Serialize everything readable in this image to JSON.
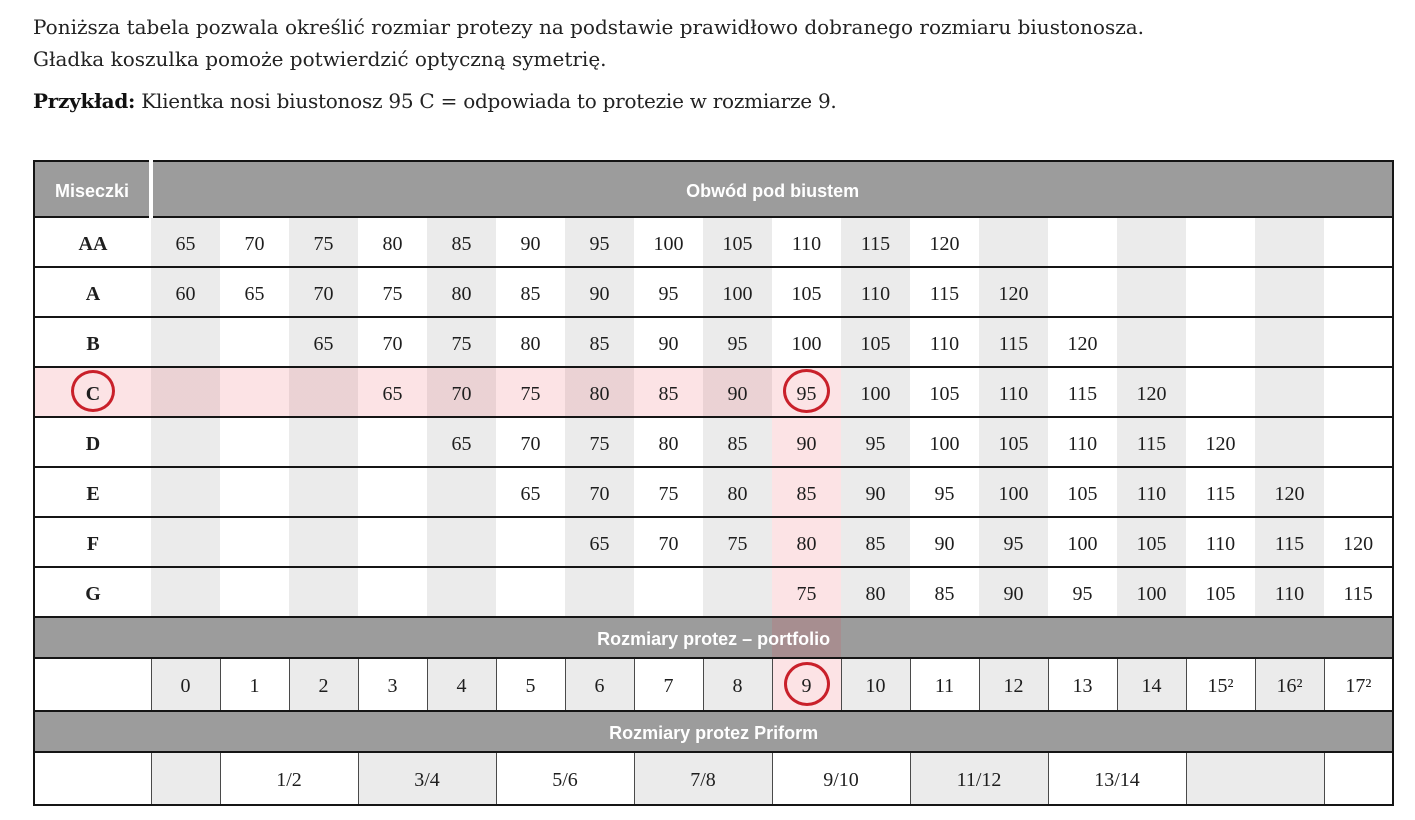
{
  "intro": {
    "line1": "Poniższa tabela pozwala określić rozmiar protezy na podstawie prawidłowo dobranego rozmiaru biustonosza.",
    "line2": "Gładka koszulka pomoże potwierdzić optyczną symetrię."
  },
  "example": {
    "label": "Przykład:",
    "text": " Klientka nosi biustonosz 95 C = odpowiada to protezie w rozmiarze 9."
  },
  "table": {
    "header": {
      "cups_label": "Miseczki",
      "band_label": "Obwód pod biustem"
    },
    "cup_rows": [
      {
        "cup": "AA",
        "cells": [
          "65",
          "70",
          "75",
          "80",
          "85",
          "90",
          "95",
          "100",
          "105",
          "110",
          "115",
          "120",
          "",
          "",
          "",
          "",
          "",
          ""
        ]
      },
      {
        "cup": "A",
        "cells": [
          "60",
          "65",
          "70",
          "75",
          "80",
          "85",
          "90",
          "95",
          "100",
          "105",
          "110",
          "115",
          "120",
          "",
          "",
          "",
          "",
          ""
        ]
      },
      {
        "cup": "B",
        "cells": [
          "",
          "",
          "65",
          "70",
          "75",
          "80",
          "85",
          "90",
          "95",
          "100",
          "105",
          "110",
          "115",
          "120",
          "",
          "",
          "",
          ""
        ]
      },
      {
        "cup": "C",
        "cells": [
          "",
          "",
          "",
          "65",
          "70",
          "75",
          "80",
          "85",
          "90",
          "95",
          "100",
          "105",
          "110",
          "115",
          "120",
          "",
          "",
          ""
        ]
      },
      {
        "cup": "D",
        "cells": [
          "",
          "",
          "",
          "",
          "65",
          "70",
          "75",
          "80",
          "85",
          "90",
          "95",
          "100",
          "105",
          "110",
          "115",
          "120",
          "",
          ""
        ]
      },
      {
        "cup": "E",
        "cells": [
          "",
          "",
          "",
          "",
          "",
          "65",
          "70",
          "75",
          "80",
          "85",
          "90",
          "95",
          "100",
          "105",
          "110",
          "115",
          "120",
          ""
        ]
      },
      {
        "cup": "F",
        "cells": [
          "",
          "",
          "",
          "",
          "",
          "",
          "65",
          "70",
          "75",
          "80",
          "85",
          "90",
          "95",
          "100",
          "105",
          "110",
          "115",
          "120"
        ]
      },
      {
        "cup": "G",
        "cells": [
          "",
          "",
          "",
          "",
          "",
          "",
          "",
          "",
          "",
          "75",
          "80",
          "85",
          "90",
          "95",
          "100",
          "105",
          "110",
          "115"
        ]
      }
    ],
    "portfolio_band_label": "Rozmiary protez – portfolio",
    "size_row": [
      "0",
      "1",
      "2",
      "3",
      "4",
      "5",
      "6",
      "7",
      "8",
      "9",
      "10",
      "11",
      "12",
      "13",
      "14",
      "15²",
      "16²",
      "17²"
    ],
    "priform_band_label": "Rozmiary protez Priform",
    "priform_row": [
      "",
      "1/2",
      "3/4",
      "5/6",
      "7/8",
      "9/10",
      "11/12",
      "13/14",
      "",
      ""
    ],
    "highlight": {
      "circled_cup": "C",
      "circled_band": "95",
      "circled_size": "9",
      "circle_color": "#c9202a",
      "row_column_tint": "rgba(232,62,76,0.145)"
    }
  }
}
